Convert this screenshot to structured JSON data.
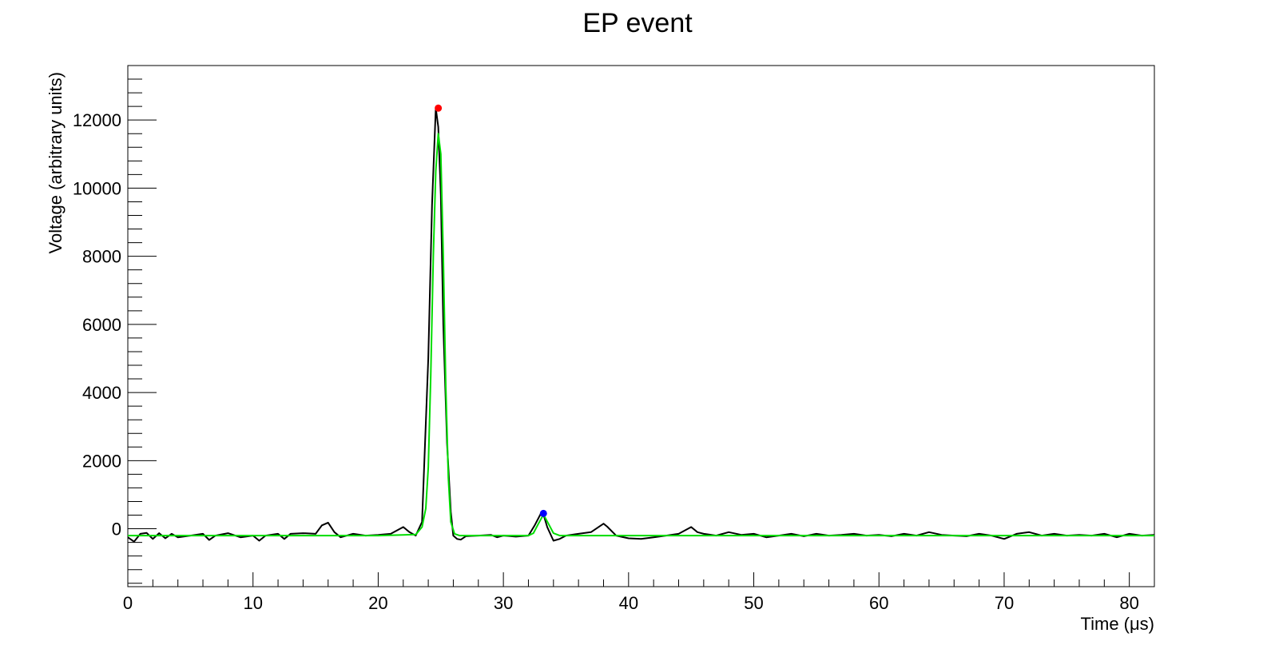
{
  "chart_data": {
    "type": "line",
    "title": "EP event",
    "xlabel": "Time (μs)",
    "ylabel": "Voltage (arbitrary units)",
    "xlim": [
      0,
      82
    ],
    "ylim": [
      -1700,
      13600
    ],
    "x_ticks": [
      0,
      10,
      20,
      30,
      40,
      50,
      60,
      70,
      80
    ],
    "x_tick_labels": [
      "0",
      "10",
      "20",
      "30",
      "40",
      "50",
      "60",
      "70",
      "80"
    ],
    "y_ticks": [
      0,
      2000,
      4000,
      6000,
      8000,
      10000,
      12000
    ],
    "y_tick_labels": [
      "0",
      "2000",
      "4000",
      "6000",
      "8000",
      "10000",
      "12000"
    ],
    "grid": false,
    "colors": {
      "waveform": "#000000",
      "fit": "#00dd00",
      "marker_main": "#ff0000",
      "marker_secondary": "#0000ff"
    },
    "series": [
      {
        "name": "waveform",
        "x": [
          0,
          0.5,
          1,
          1.5,
          2,
          2.5,
          3,
          3.5,
          4,
          5,
          6,
          6.5,
          7,
          8,
          9,
          10,
          10.5,
          11,
          12,
          12.5,
          13,
          14,
          15,
          15.5,
          16,
          16.5,
          17,
          18,
          19,
          20,
          21,
          22,
          22.5,
          23,
          23.5,
          24,
          24.3,
          24.6,
          24.8,
          25.0,
          25.2,
          25.5,
          25.8,
          26.0,
          26.3,
          26.6,
          27,
          28,
          29,
          29.5,
          30,
          31,
          32,
          32.5,
          33.0,
          33.2,
          33.5,
          34,
          34.5,
          35,
          36,
          37,
          38,
          38.3,
          39,
          40,
          41,
          42,
          43,
          44,
          45,
          45.5,
          46,
          47,
          48,
          49,
          50,
          51,
          52,
          53,
          54,
          55,
          56,
          57,
          58,
          59,
          60,
          61,
          62,
          63,
          64,
          65,
          66,
          67,
          68,
          69,
          70,
          71,
          72,
          73,
          74,
          75,
          76,
          77,
          78,
          79,
          80,
          81,
          82
        ],
        "y": [
          -250,
          -380,
          -150,
          -120,
          -300,
          -130,
          -280,
          -150,
          -250,
          -200,
          -150,
          -330,
          -200,
          -130,
          -250,
          -200,
          -350,
          -200,
          -150,
          -300,
          -150,
          -130,
          -150,
          100,
          180,
          -100,
          -250,
          -150,
          -200,
          -180,
          -150,
          50,
          -100,
          -200,
          200,
          5000,
          9500,
          12350,
          11800,
          9800,
          6000,
          2500,
          500,
          -200,
          -300,
          -320,
          -220,
          -200,
          -180,
          -250,
          -200,
          -230,
          -200,
          100,
          450,
          420,
          50,
          -350,
          -300,
          -200,
          -150,
          -100,
          150,
          60,
          -200,
          -280,
          -300,
          -250,
          -200,
          -150,
          50,
          -100,
          -150,
          -200,
          -100,
          -180,
          -150,
          -250,
          -200,
          -150,
          -220,
          -150,
          -200,
          -180,
          -150,
          -200,
          -180,
          -220,
          -150,
          -200,
          -100,
          -180,
          -200,
          -220,
          -150,
          -200,
          -300,
          -150,
          -100,
          -200,
          -150,
          -200,
          -180,
          -200,
          -150,
          -250,
          -150,
          -200,
          -180
        ]
      },
      {
        "name": "fit",
        "x": [
          0,
          10,
          20,
          23,
          23.5,
          23.8,
          24.0,
          24.2,
          24.4,
          24.6,
          24.8,
          25.0,
          25.2,
          25.4,
          25.6,
          25.8,
          26.1,
          26.5,
          32.0,
          32.4,
          32.8,
          33.2,
          33.6,
          34.0,
          34.5,
          40,
          50,
          60,
          70,
          82
        ],
        "y": [
          -200,
          -200,
          -200,
          -170,
          50,
          600,
          1800,
          4500,
          8000,
          10500,
          11600,
          11000,
          8000,
          4200,
          1500,
          200,
          -150,
          -200,
          -200,
          -130,
          150,
          420,
          150,
          -130,
          -200,
          -200,
          -200,
          -200,
          -200,
          -200
        ]
      }
    ],
    "annotations": [
      {
        "label": "main peak",
        "x": 24.8,
        "y": 12350,
        "color": "#ff0000"
      },
      {
        "label": "secondary peak",
        "x": 33.2,
        "y": 450,
        "color": "#0000ff"
      }
    ]
  }
}
